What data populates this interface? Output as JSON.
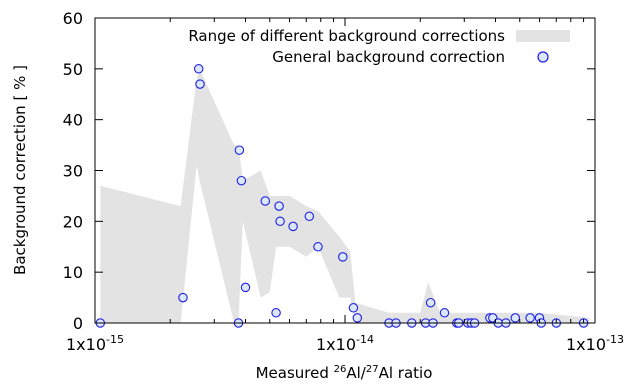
{
  "chart_data": {
    "type": "scatter",
    "x_scale": "log",
    "x_range": [
      1e-15,
      1e-13
    ],
    "y_range": [
      0,
      60
    ],
    "x_ticks": [
      {
        "value": 1e-15,
        "base": "1x10",
        "exp": "-15"
      },
      {
        "value": 1e-14,
        "base": "1x10",
        "exp": "-14"
      },
      {
        "value": 1e-13,
        "base": "1x10",
        "exp": "-13"
      }
    ],
    "y_ticks": [
      0,
      10,
      20,
      30,
      40,
      50,
      60
    ],
    "xlabel": {
      "pre": "Measured ",
      "sup1": "26",
      "mid": "Al/",
      "sup2": "27",
      "post": "Al ratio"
    },
    "ylabel": "Background correction  [ % ]",
    "legend": {
      "placement": "top-right",
      "band_label": "Range of different background corrections",
      "points_label": "General background correction"
    },
    "colors": {
      "band_fill": "#e3e3e3",
      "point_fill": "#dbe6ff",
      "point_stroke": "#1f1fe0",
      "axis": "#000000"
    },
    "series": [
      {
        "name": "Range of different background corrections",
        "kind": "band",
        "x": [
          1.05e-15,
          2.2e-15,
          2.55e-15,
          2.62e-15,
          3.6e-15,
          3.75e-15,
          3.9e-15,
          4.6e-15,
          5e-15,
          5.3e-15,
          6e-15,
          7e-15,
          7.8e-15,
          9.5e-15,
          1.05e-14,
          1.1e-14,
          1.5e-14,
          2e-14,
          2.15e-14,
          2.4e-14,
          3e-14,
          3.9e-14,
          5e-14,
          6e-14,
          9.5e-14
        ],
        "upper": [
          27,
          23,
          48,
          50,
          35,
          35,
          28,
          30,
          25,
          25,
          25,
          23,
          22,
          17,
          14,
          4,
          2,
          2,
          8,
          2,
          2,
          2,
          2,
          2,
          1
        ],
        "lower": [
          0,
          0,
          31,
          28,
          0,
          0,
          20,
          5,
          6,
          15,
          15,
          13,
          15,
          5,
          5,
          0,
          0,
          0,
          0,
          0,
          0,
          0,
          0,
          0,
          0
        ]
      },
      {
        "name": "General background correction",
        "kind": "points",
        "x": [
          1.05e-15,
          2.25e-15,
          2.6e-15,
          2.63e-15,
          3.75e-15,
          3.78e-15,
          3.85e-15,
          4e-15,
          4.8e-15,
          5.3e-15,
          5.45e-15,
          5.5e-15,
          6.2e-15,
          7.2e-15,
          7.8e-15,
          9.8e-15,
          1.08e-14,
          1.12e-14,
          1.5e-14,
          1.6e-14,
          1.85e-14,
          2.1e-14,
          2.2e-14,
          2.25e-14,
          2.5e-14,
          2.8e-14,
          2.85e-14,
          3.1e-14,
          3.2e-14,
          3.3e-14,
          3.8e-14,
          3.9e-14,
          4.1e-14,
          4.4e-14,
          4.8e-14,
          5.5e-14,
          6e-14,
          6.1e-14,
          7e-14,
          9e-14
        ],
        "y": [
          0,
          5,
          50,
          47,
          0,
          34,
          28,
          7,
          24,
          2,
          23,
          20,
          19,
          21,
          15,
          13,
          3,
          1,
          0,
          0,
          0,
          0,
          4,
          0,
          2,
          0,
          0,
          0,
          0,
          0,
          1,
          1,
          0,
          0,
          1,
          1,
          1,
          0,
          0,
          0
        ]
      }
    ],
    "grid": false
  }
}
